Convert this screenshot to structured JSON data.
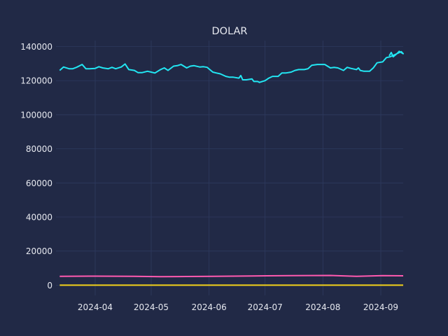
{
  "chart_data": {
    "type": "line",
    "title": "DOLAR",
    "xlabel": "",
    "ylabel": "",
    "grid": true,
    "legend": "none",
    "x_range": [
      "2024-03-11",
      "2024-09-13"
    ],
    "ylim": [
      -6000,
      143500
    ],
    "y_ticks": [
      0,
      20000,
      40000,
      60000,
      80000,
      100000,
      120000,
      140000
    ],
    "x_ticks": [
      {
        "date": "2024-04-01",
        "label": "2024-04"
      },
      {
        "date": "2024-05-01",
        "label": "2024-05"
      },
      {
        "date": "2024-06-01",
        "label": "2024-06"
      },
      {
        "date": "2024-07-01",
        "label": "2024-07"
      },
      {
        "date": "2024-08-01",
        "label": "2024-08"
      },
      {
        "date": "2024-09-01",
        "label": "2024-09"
      }
    ],
    "colors": {
      "background": "#212946",
      "grid": "#2e3a5f",
      "text": "#e6e8ef"
    },
    "series": [
      {
        "color": "#22e6f2",
        "points": [
          [
            "2024-03-13",
            126000
          ],
          [
            "2024-03-15",
            128000
          ],
          [
            "2024-03-18",
            127000
          ],
          [
            "2024-03-20",
            127000
          ],
          [
            "2024-03-22",
            127800
          ],
          [
            "2024-03-25",
            129500
          ],
          [
            "2024-03-27",
            127000
          ],
          [
            "2024-03-29",
            127000
          ],
          [
            "2024-04-01",
            127200
          ],
          [
            "2024-04-03",
            128200
          ],
          [
            "2024-04-05",
            127500
          ],
          [
            "2024-04-08",
            127000
          ],
          [
            "2024-04-10",
            127800
          ],
          [
            "2024-04-12",
            127000
          ],
          [
            "2024-04-15",
            128000
          ],
          [
            "2024-04-17",
            129800
          ],
          [
            "2024-04-19",
            126500
          ],
          [
            "2024-04-22",
            126000
          ],
          [
            "2024-04-24",
            124700
          ],
          [
            "2024-04-26",
            124700
          ],
          [
            "2024-04-29",
            125500
          ],
          [
            "2024-05-01",
            125000
          ],
          [
            "2024-05-03",
            124500
          ],
          [
            "2024-05-06",
            126500
          ],
          [
            "2024-05-08",
            127500
          ],
          [
            "2024-05-10",
            126000
          ],
          [
            "2024-05-13",
            128500
          ],
          [
            "2024-05-15",
            128800
          ],
          [
            "2024-05-17",
            129500
          ],
          [
            "2024-05-20",
            127500
          ],
          [
            "2024-05-22",
            128500
          ],
          [
            "2024-05-24",
            128800
          ],
          [
            "2024-05-27",
            128000
          ],
          [
            "2024-05-29",
            128200
          ],
          [
            "2024-05-31",
            127800
          ],
          [
            "2024-06-03",
            125000
          ],
          [
            "2024-06-05",
            124500
          ],
          [
            "2024-06-07",
            124000
          ],
          [
            "2024-06-10",
            122500
          ],
          [
            "2024-06-12",
            122000
          ],
          [
            "2024-06-14",
            122000
          ],
          [
            "2024-06-17",
            121500
          ],
          [
            "2024-06-18",
            123000
          ],
          [
            "2024-06-19",
            120500
          ],
          [
            "2024-06-21",
            120500
          ],
          [
            "2024-06-24",
            121000
          ],
          [
            "2024-06-25",
            119500
          ],
          [
            "2024-06-27",
            119500
          ],
          [
            "2024-06-28",
            119000
          ],
          [
            "2024-07-01",
            120000
          ],
          [
            "2024-07-03",
            121500
          ],
          [
            "2024-07-05",
            122500
          ],
          [
            "2024-07-08",
            122500
          ],
          [
            "2024-07-10",
            124500
          ],
          [
            "2024-07-12",
            124500
          ],
          [
            "2024-07-15",
            125000
          ],
          [
            "2024-07-17",
            126000
          ],
          [
            "2024-07-19",
            126500
          ],
          [
            "2024-07-22",
            126500
          ],
          [
            "2024-07-24",
            127000
          ],
          [
            "2024-07-26",
            129000
          ],
          [
            "2024-07-29",
            129500
          ],
          [
            "2024-07-31",
            129500
          ],
          [
            "2024-08-02",
            129500
          ],
          [
            "2024-08-05",
            127500
          ],
          [
            "2024-08-07",
            127800
          ],
          [
            "2024-08-09",
            127500
          ],
          [
            "2024-08-12",
            126000
          ],
          [
            "2024-08-14",
            127800
          ],
          [
            "2024-08-16",
            127200
          ],
          [
            "2024-08-19",
            126500
          ],
          [
            "2024-08-20",
            127500
          ],
          [
            "2024-08-21",
            126000
          ],
          [
            "2024-08-23",
            125500
          ],
          [
            "2024-08-26",
            125500
          ],
          [
            "2024-08-28",
            127500
          ],
          [
            "2024-08-30",
            130500
          ],
          [
            "2024-09-02",
            131000
          ],
          [
            "2024-09-04",
            133500
          ],
          [
            "2024-09-06",
            134000
          ],
          [
            "2024-09-09",
            135500
          ],
          [
            "2024-09-11",
            136500
          ],
          [
            "2024-09-12",
            137000
          ],
          [
            "2024-09-13",
            135800
          ],
          [
            "2024-09-13",
            136500
          ],
          [
            "2024-09-13",
            137200
          ],
          [
            "2024-09-13",
            136000
          ],
          [
            "2024-09-13",
            135000
          ],
          [
            "2024-09-13",
            134000
          ],
          [
            "2024-09-13",
            136500
          ],
          [
            "2024-09-13",
            134500
          ]
        ]
      },
      {
        "color": "#ff5ab0",
        "points": [
          [
            "2024-03-13",
            5200
          ],
          [
            "2024-04-01",
            5300
          ],
          [
            "2024-04-22",
            5200
          ],
          [
            "2024-05-06",
            5000
          ],
          [
            "2024-05-20",
            5100
          ],
          [
            "2024-06-03",
            5200
          ],
          [
            "2024-06-24",
            5400
          ],
          [
            "2024-07-15",
            5600
          ],
          [
            "2024-08-05",
            5700
          ],
          [
            "2024-08-19",
            5200
          ],
          [
            "2024-09-02",
            5600
          ],
          [
            "2024-09-13",
            5500
          ]
        ]
      },
      {
        "color": "#f2d21a",
        "points": [
          [
            "2024-03-13",
            0
          ],
          [
            "2024-09-13",
            0
          ]
        ]
      }
    ]
  }
}
